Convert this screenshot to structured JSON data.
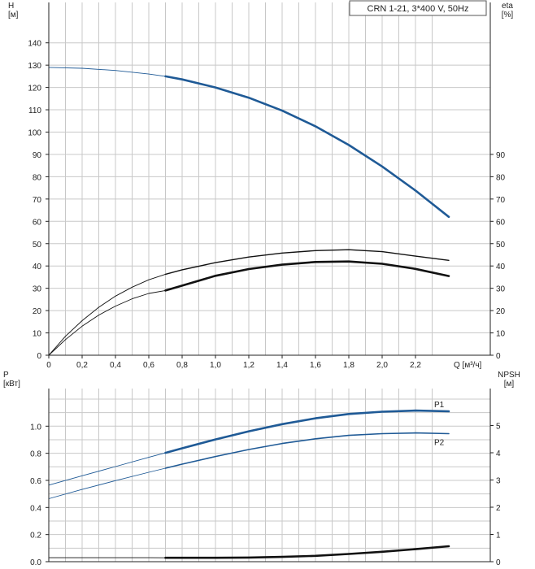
{
  "title_box": "CRN 1-21, 3*400 V, 50Hz",
  "colors": {
    "blue": "#1f5a96",
    "black": "#111111",
    "grid": "#c8c8c8",
    "axis": "#222222"
  },
  "chart_data": [
    {
      "type": "line",
      "panel": "top",
      "title": "CRN 1-21, 3*400 V, 50Hz",
      "xlabel": "Q [м³/ч]",
      "ylabel_left": "H\n[м]",
      "ylabel_right": "eta\n[%]",
      "xlim": [
        0,
        2.4
      ],
      "ylim": [
        0,
        145
      ],
      "grid": true,
      "x_ticks": [
        "0",
        "0,2",
        "0,4",
        "0,6",
        "0,8",
        "1,0",
        "1,2",
        "1,4",
        "1,6",
        "1,8",
        "2,0",
        "2,2"
      ],
      "y_ticks_left": [
        "0",
        "10",
        "20",
        "30",
        "40",
        "50",
        "60",
        "70",
        "80",
        "90",
        "100",
        "110",
        "120",
        "130",
        "140"
      ],
      "y_ticks_right": [
        "0",
        "10",
        "20",
        "30",
        "40",
        "50",
        "60",
        "70",
        "80",
        "90"
      ],
      "series": [
        {
          "color": "blue",
          "x": [
            0,
            0.2,
            0.4,
            0.6,
            0.7,
            0.8,
            1.0,
            1.2,
            1.4,
            1.6,
            1.8,
            2.0,
            2.2,
            2.4
          ],
          "y": [
            129,
            128.6,
            127.6,
            126.0,
            125.0,
            123.6,
            120.0,
            115.4,
            109.6,
            102.6,
            94.2,
            84.6,
            73.8,
            62.0
          ],
          "thin_until": 0.7,
          "width": 2.6
        },
        {
          "color": "black",
          "x": [
            0,
            0.1,
            0.2,
            0.3,
            0.4,
            0.5,
            0.6,
            0.7,
            0.8,
            1.0,
            1.2,
            1.4,
            1.6,
            1.8,
            2.0,
            2.2,
            2.4
          ],
          "y": [
            0,
            8.5,
            15.5,
            21.5,
            26.5,
            30.5,
            33.8,
            36.3,
            38.3,
            41.5,
            44.0,
            45.8,
            46.9,
            47.3,
            46.4,
            44.4,
            42.5
          ],
          "thin_until": 0.7,
          "width": 1.4
        },
        {
          "color": "black",
          "x": [
            0,
            0.1,
            0.2,
            0.3,
            0.4,
            0.5,
            0.6,
            0.7,
            0.8,
            1.0,
            1.2,
            1.4,
            1.6,
            1.8,
            2.0,
            2.2,
            2.4
          ],
          "y": [
            0,
            7.0,
            13.0,
            18.0,
            22.0,
            25.3,
            27.7,
            29.0,
            31.2,
            35.6,
            38.6,
            40.6,
            41.8,
            42.0,
            41.0,
            38.7,
            35.5
          ],
          "thin_until": 0.7,
          "width": 2.6
        }
      ]
    },
    {
      "type": "line",
      "panel": "bottom",
      "xlabel": "",
      "ylabel_left": "P\n[кВт]",
      "ylabel_right": "NPSH\n[м]",
      "xlim": [
        0,
        2.4
      ],
      "ylim": [
        0,
        1.2
      ],
      "grid": true,
      "y_ticks_left": [
        "0.0",
        "0.2",
        "0.4",
        "0.6",
        "0.8",
        "1.0"
      ],
      "y_ticks_right": [
        "0",
        "1",
        "2",
        "3",
        "4",
        "5"
      ],
      "series": [
        {
          "name": "P1",
          "color": "blue",
          "x": [
            0,
            0.2,
            0.4,
            0.6,
            0.7,
            0.8,
            1.0,
            1.2,
            1.4,
            1.6,
            1.8,
            2.0,
            2.2,
            2.4
          ],
          "y": [
            0.565,
            0.634,
            0.702,
            0.77,
            0.803,
            0.837,
            0.902,
            0.962,
            1.015,
            1.058,
            1.09,
            1.107,
            1.115,
            1.11
          ],
          "thin_until": 0.7,
          "width": 2.6
        },
        {
          "name": "P2",
          "color": "blue",
          "x": [
            0,
            0.2,
            0.4,
            0.6,
            0.7,
            0.8,
            1.0,
            1.2,
            1.4,
            1.6,
            1.8,
            2.0,
            2.2,
            2.4
          ],
          "y": [
            0.465,
            0.533,
            0.598,
            0.66,
            0.69,
            0.72,
            0.776,
            0.828,
            0.872,
            0.907,
            0.932,
            0.945,
            0.95,
            0.945
          ],
          "thin_until": 0.7,
          "width": 1.6
        },
        {
          "name": "NPSH",
          "color": "black",
          "x": [
            0,
            0.2,
            0.4,
            0.6,
            0.7,
            0.8,
            1.0,
            1.2,
            1.4,
            1.6,
            1.8,
            2.0,
            2.2,
            2.4
          ],
          "y": [
            0.146,
            0.146,
            0.146,
            0.145,
            0.144,
            0.143,
            0.143,
            0.152,
            0.176,
            0.216,
            0.283,
            0.363,
            0.46,
            0.566
          ],
          "thin_until": 0.7,
          "width": 2.6
        }
      ]
    }
  ]
}
